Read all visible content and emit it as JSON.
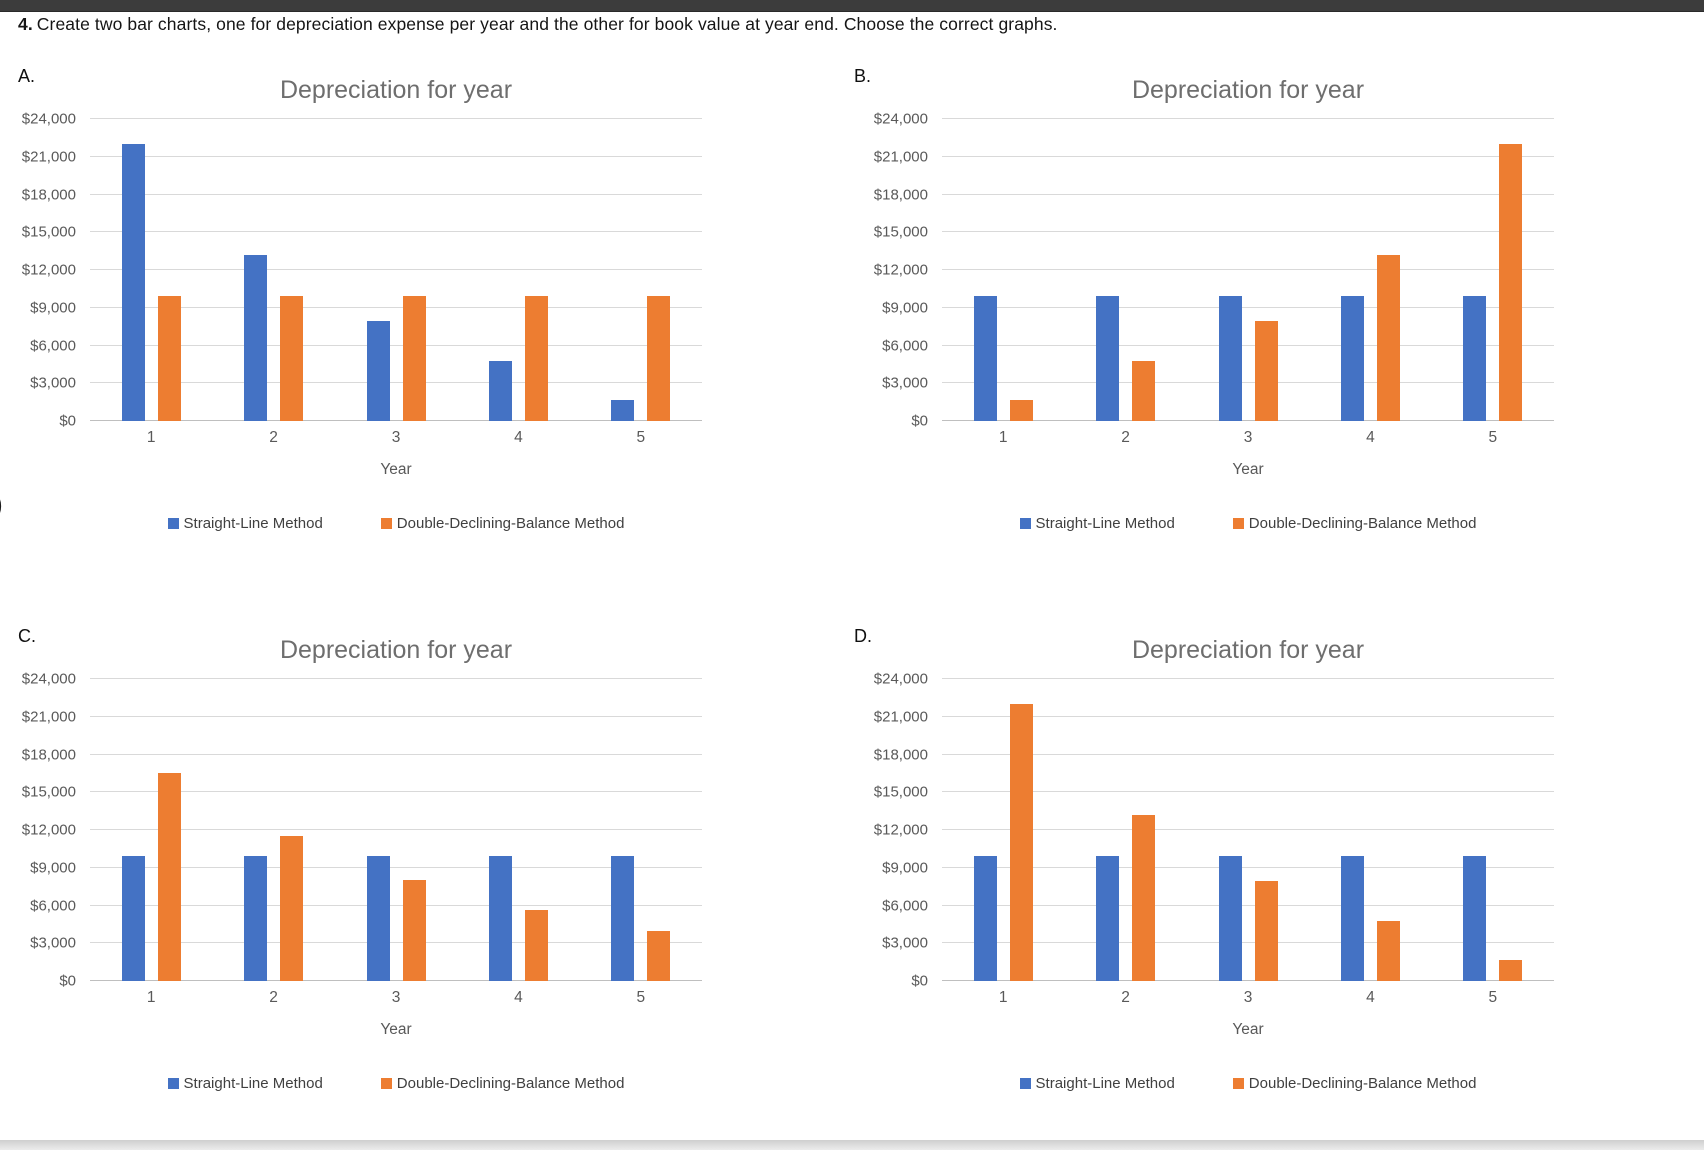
{
  "page": {
    "question_number": "4.",
    "question_text": "Create two bar charts, one for depreciation expense per year and the other for book value at year end. Choose the correct graphs.",
    "stray_glyph": ")"
  },
  "chart_data": [
    {
      "id": "A",
      "label": "A.",
      "type": "bar",
      "title": "Depreciation for year",
      "xlabel": "Year",
      "categories": [
        "1",
        "2",
        "3",
        "4",
        "5"
      ],
      "series": [
        {
          "key": "straight-line",
          "name": "Straight-Line Method",
          "color": "#4472C4",
          "values": [
            22000,
            13200,
            7950,
            4750,
            1650
          ]
        },
        {
          "key": "double-declining",
          "name": "Double-Declining-Balance Method",
          "color": "#ED7D31",
          "values": [
            9900,
            9900,
            9900,
            9900,
            9900
          ]
        }
      ],
      "ylim": [
        0,
        24000
      ],
      "ytick_step": 3000,
      "ytick_labels": [
        "$0",
        "$3,000",
        "$6,000",
        "$9,000",
        "$12,000",
        "$15,000",
        "$18,000",
        "$21,000",
        "$24,000"
      ],
      "grid": true,
      "legend_position": "bottom"
    },
    {
      "id": "B",
      "label": "B.",
      "type": "bar",
      "title": "Depreciation for year",
      "xlabel": "Year",
      "categories": [
        "1",
        "2",
        "3",
        "4",
        "5"
      ],
      "series": [
        {
          "key": "straight-line",
          "name": "Straight-Line Method",
          "color": "#4472C4",
          "values": [
            9900,
            9900,
            9900,
            9900,
            9900
          ]
        },
        {
          "key": "double-declining",
          "name": "Double-Declining-Balance Method",
          "color": "#ED7D31",
          "values": [
            1650,
            4750,
            7950,
            13200,
            22000
          ]
        }
      ],
      "ylim": [
        0,
        24000
      ],
      "ytick_step": 3000,
      "ytick_labels": [
        "$0",
        "$3,000",
        "$6,000",
        "$9,000",
        "$12,000",
        "$15,000",
        "$18,000",
        "$21,000",
        "$24,000"
      ],
      "grid": true,
      "legend_position": "bottom"
    },
    {
      "id": "C",
      "label": "C.",
      "type": "bar",
      "title": "Depreciation for year",
      "xlabel": "Year",
      "categories": [
        "1",
        "2",
        "3",
        "4",
        "5"
      ],
      "series": [
        {
          "key": "straight-line",
          "name": "Straight-Line Method",
          "color": "#4472C4",
          "values": [
            9900,
            9900,
            9900,
            9900,
            9900
          ]
        },
        {
          "key": "double-declining",
          "name": "Double-Declining-Balance Method",
          "color": "#ED7D31",
          "values": [
            16500,
            11500,
            8050,
            5650,
            3950
          ]
        }
      ],
      "ylim": [
        0,
        24000
      ],
      "ytick_step": 3000,
      "ytick_labels": [
        "$0",
        "$3,000",
        "$6,000",
        "$9,000",
        "$12,000",
        "$15,000",
        "$18,000",
        "$21,000",
        "$24,000"
      ],
      "grid": true,
      "legend_position": "bottom"
    },
    {
      "id": "D",
      "label": "D.",
      "type": "bar",
      "title": "Depreciation for year",
      "xlabel": "Year",
      "categories": [
        "1",
        "2",
        "3",
        "4",
        "5"
      ],
      "series": [
        {
          "key": "straight-line",
          "name": "Straight-Line Method",
          "color": "#4472C4",
          "values": [
            9900,
            9900,
            9900,
            9900,
            9900
          ]
        },
        {
          "key": "double-declining",
          "name": "Double-Declining-Balance Method",
          "color": "#ED7D31",
          "values": [
            22000,
            13200,
            7950,
            4750,
            1650
          ]
        }
      ],
      "ylim": [
        0,
        24000
      ],
      "ytick_step": 3000,
      "ytick_labels": [
        "$0",
        "$3,000",
        "$6,000",
        "$9,000",
        "$12,000",
        "$15,000",
        "$18,000",
        "$21,000",
        "$24,000"
      ],
      "grid": true,
      "legend_position": "bottom"
    }
  ]
}
